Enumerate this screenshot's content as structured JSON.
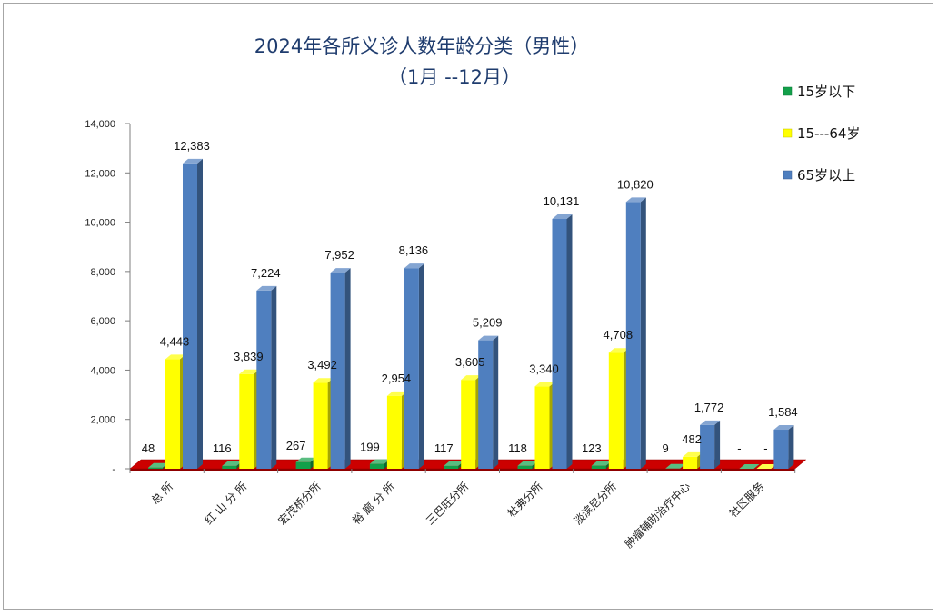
{
  "chart_data": {
    "type": "bar",
    "title": "2024年各所义诊人数年龄分类（男性）",
    "subtitle": "（1月 --12月）",
    "categories": [
      "总 所",
      "红 山 分 所",
      "宏茂桥分所",
      "裕 廊 分 所",
      "三巴旺分所",
      "杜弗分所",
      "淡滨尼分所",
      "肿瘤辅助治疗中心",
      "社区服务"
    ],
    "series": [
      {
        "name": "15岁以下",
        "color": "#12a04a",
        "values": [
          48,
          116,
          267,
          199,
          117,
          118,
          123,
          9,
          0
        ],
        "labels": [
          "48",
          "116",
          "267",
          "199",
          "117",
          "118",
          "123",
          "9",
          "-"
        ]
      },
      {
        "name": "15---64岁",
        "color": "#ffff00",
        "values": [
          4443,
          3839,
          3492,
          2954,
          3605,
          3340,
          4708,
          482,
          0
        ],
        "labels": [
          "4,443",
          "3,839",
          "3,492",
          "2,954",
          "3,605",
          "3,340",
          "4,708",
          "482",
          "-"
        ]
      },
      {
        "name": "65岁以上",
        "color": "#4f7fbf",
        "values": [
          12383,
          7224,
          7952,
          8136,
          5209,
          10131,
          10820,
          1772,
          1584
        ],
        "labels": [
          "12,383",
          "7,224",
          "7,952",
          "8,136",
          "5,209",
          "10,131",
          "10,820",
          "1,772",
          "1,584"
        ]
      }
    ],
    "yticks": [
      "-",
      "2,000",
      "4,000",
      "6,000",
      "8,000",
      "10,000",
      "12,000",
      "14,000"
    ],
    "ylim": [
      0,
      14000
    ],
    "legend_position": "right",
    "floor_color": "#cc0000",
    "grid": false
  }
}
